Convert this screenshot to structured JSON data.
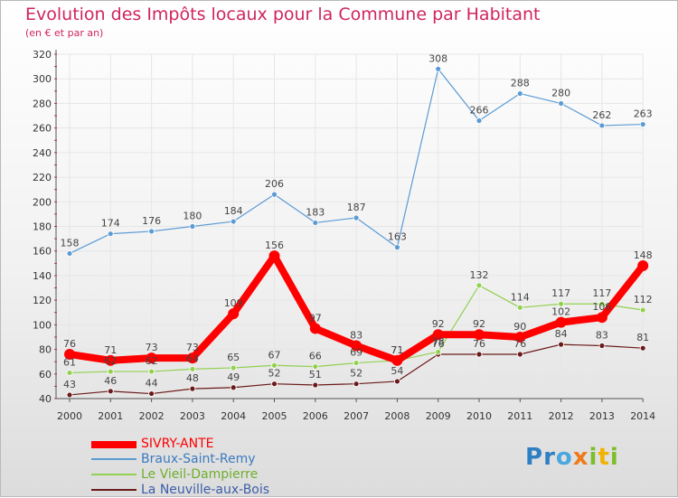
{
  "header": {
    "title": "Evolution des Impôts locaux pour la Commune par Habitant",
    "subtitle": "(en € et par an)"
  },
  "logo": {
    "text": "Proxiti"
  },
  "chart_data": {
    "type": "line",
    "title": "Evolution des Impôts locaux pour la Commune par Habitant",
    "subtitle": "(en € et par an)",
    "xlabel": "",
    "ylabel": "",
    "ylim": [
      40,
      320
    ],
    "yticks": [
      40,
      60,
      80,
      100,
      120,
      140,
      160,
      180,
      200,
      220,
      240,
      260,
      280,
      300,
      320
    ],
    "categories": [
      "2000",
      "2001",
      "2002",
      "2003",
      "2004",
      "2005",
      "2006",
      "2007",
      "2008",
      "2009",
      "2010",
      "2011",
      "2012",
      "2013",
      "2014"
    ],
    "legend_position": "bottom-left",
    "grid": true,
    "series": [
      {
        "name": "SIVRY-ANTE",
        "color": "#ff0000",
        "values": [
          76,
          71,
          73,
          73,
          109,
          156,
          97,
          83,
          71,
          92,
          92,
          90,
          102,
          106,
          148
        ],
        "labels": [
          "76",
          "71",
          "73",
          "73",
          "109",
          "156",
          "97",
          "83",
          "71",
          "92",
          "92",
          "90",
          "102",
          "106",
          "148"
        ]
      },
      {
        "name": "Braux-Saint-Remy",
        "color": "#5b9bd5",
        "values": [
          158,
          174,
          176,
          180,
          184,
          206,
          183,
          187,
          163,
          308,
          266,
          288,
          280,
          262,
          263
        ],
        "labels": [
          "158",
          "174",
          "176",
          "180",
          "184",
          "206",
          "183",
          "187",
          "163",
          "308",
          "266",
          "288",
          "280",
          "262",
          "263"
        ]
      },
      {
        "name": "Le Vieil-Dampierre",
        "color": "#92d050",
        "values": [
          61,
          62,
          62,
          64,
          65,
          67,
          66,
          69,
          71,
          78,
          132,
          114,
          117,
          117,
          112
        ],
        "labels": [
          "61",
          "62",
          "62",
          "64",
          "65",
          "67",
          "66",
          "69",
          "71",
          "78",
          "132",
          "114",
          "117",
          "117",
          "112"
        ]
      },
      {
        "name": "La Neuville-aux-Bois",
        "color": "#6b1a1a",
        "values": [
          43,
          46,
          44,
          48,
          49,
          52,
          51,
          52,
          54,
          76,
          76,
          76,
          84,
          83,
          81
        ],
        "labels": [
          "43",
          "46",
          "44",
          "48",
          "49",
          "52",
          "51",
          "52",
          "54",
          "76",
          "76",
          "76",
          "84",
          "83",
          "81"
        ]
      }
    ]
  }
}
